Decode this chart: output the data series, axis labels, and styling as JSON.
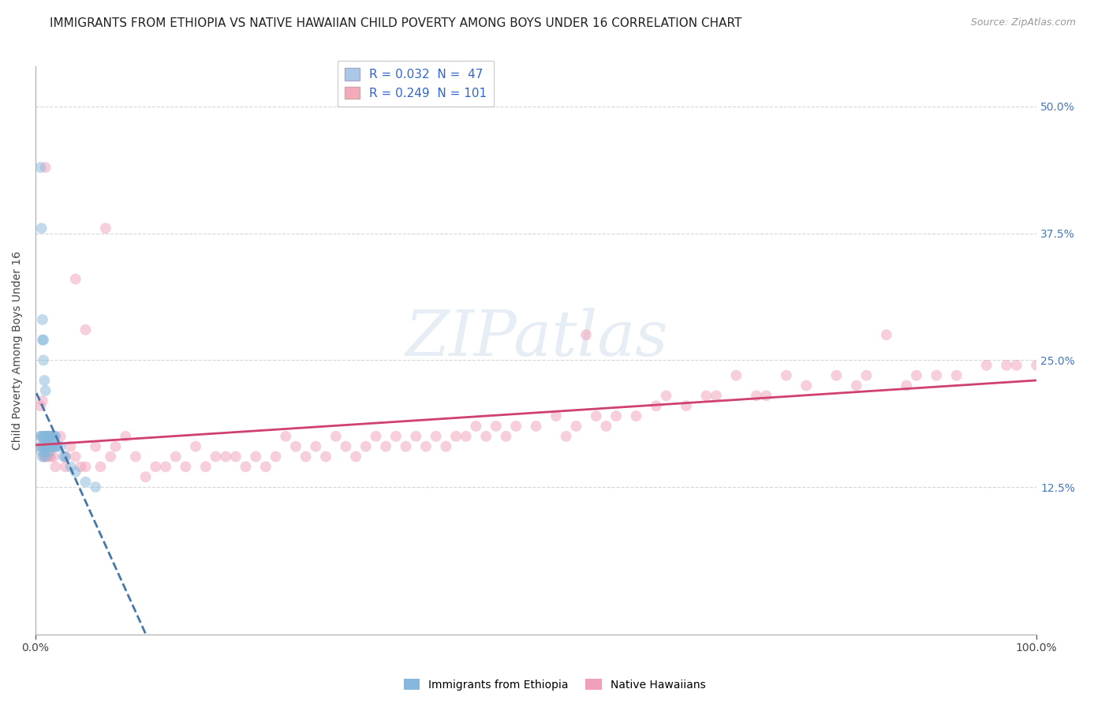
{
  "title": "IMMIGRANTS FROM ETHIOPIA VS NATIVE HAWAIIAN CHILD POVERTY AMONG BOYS UNDER 16 CORRELATION CHART",
  "source": "Source: ZipAtlas.com",
  "ylabel": "Child Poverty Among Boys Under 16",
  "xlim": [
    0.0,
    1.0
  ],
  "ylim": [
    -0.02,
    0.54
  ],
  "xtick_labels": [
    "0.0%",
    "100.0%"
  ],
  "xtick_positions": [
    0.0,
    1.0
  ],
  "ytick_labels": [
    "12.5%",
    "25.0%",
    "37.5%",
    "50.0%"
  ],
  "ytick_positions": [
    0.125,
    0.25,
    0.375,
    0.5
  ],
  "right_ytick_labels": [
    "12.5%",
    "25.0%",
    "37.5%",
    "50.0%"
  ],
  "legend_entry1": "R = 0.032  N =  47",
  "legend_entry2": "R = 0.249  N = 101",
  "legend_color1": "#aac8e8",
  "legend_color2": "#f4aabb",
  "series1_name": "Immigrants from Ethiopia",
  "series1_color": "#85b8dc",
  "series1_line_color": "#4477aa",
  "series1_line_style": "--",
  "series2_name": "Native Hawaiians",
  "series2_color": "#f0a0b8",
  "series2_line_color": "#d04070",
  "series2_line_style": "-",
  "watermark_text": "ZIPatlas",
  "background_color": "#ffffff",
  "grid_color": "#cccccc",
  "title_fontsize": 11,
  "label_fontsize": 10,
  "tick_fontsize": 10,
  "legend_fontsize": 11,
  "scatter_alpha": 0.5,
  "scatter_size": 100,
  "blue_x": [
    0.005,
    0.005,
    0.005,
    0.006,
    0.006,
    0.006,
    0.007,
    0.007,
    0.007,
    0.007,
    0.008,
    0.008,
    0.008,
    0.009,
    0.009,
    0.009,
    0.01,
    0.01,
    0.01,
    0.01,
    0.01,
    0.011,
    0.011,
    0.012,
    0.012,
    0.012,
    0.013,
    0.013,
    0.014,
    0.014,
    0.015,
    0.015,
    0.016,
    0.016,
    0.017,
    0.018,
    0.019,
    0.02,
    0.02,
    0.022,
    0.025,
    0.028,
    0.03,
    0.035,
    0.04,
    0.05,
    0.06
  ],
  "blue_y": [
    0.44,
    0.175,
    0.165,
    0.38,
    0.175,
    0.16,
    0.29,
    0.27,
    0.175,
    0.155,
    0.27,
    0.25,
    0.165,
    0.23,
    0.175,
    0.16,
    0.22,
    0.175,
    0.17,
    0.165,
    0.155,
    0.175,
    0.165,
    0.175,
    0.17,
    0.165,
    0.175,
    0.165,
    0.175,
    0.16,
    0.175,
    0.165,
    0.175,
    0.165,
    0.175,
    0.165,
    0.175,
    0.175,
    0.165,
    0.165,
    0.165,
    0.155,
    0.155,
    0.145,
    0.14,
    0.13,
    0.125
  ],
  "pink_x": [
    0.005,
    0.006,
    0.007,
    0.008,
    0.008,
    0.009,
    0.01,
    0.01,
    0.012,
    0.013,
    0.015,
    0.015,
    0.017,
    0.018,
    0.02,
    0.02,
    0.025,
    0.03,
    0.03,
    0.035,
    0.04,
    0.04,
    0.045,
    0.05,
    0.05,
    0.06,
    0.065,
    0.07,
    0.075,
    0.08,
    0.09,
    0.1,
    0.11,
    0.12,
    0.13,
    0.14,
    0.15,
    0.16,
    0.17,
    0.18,
    0.19,
    0.2,
    0.21,
    0.22,
    0.23,
    0.24,
    0.25,
    0.26,
    0.27,
    0.28,
    0.29,
    0.3,
    0.31,
    0.32,
    0.33,
    0.34,
    0.35,
    0.36,
    0.37,
    0.38,
    0.39,
    0.4,
    0.41,
    0.42,
    0.43,
    0.44,
    0.45,
    0.46,
    0.47,
    0.48,
    0.5,
    0.52,
    0.54,
    0.55,
    0.56,
    0.57,
    0.58,
    0.6,
    0.62,
    0.63,
    0.65,
    0.67,
    0.68,
    0.7,
    0.72,
    0.73,
    0.75,
    0.77,
    0.8,
    0.82,
    0.83,
    0.85,
    0.87,
    0.88,
    0.9,
    0.92,
    0.95,
    0.97,
    0.98,
    1.0,
    0.53
  ],
  "pink_y": [
    0.205,
    0.165,
    0.21,
    0.165,
    0.155,
    0.175,
    0.44,
    0.155,
    0.175,
    0.155,
    0.175,
    0.155,
    0.165,
    0.155,
    0.165,
    0.145,
    0.175,
    0.155,
    0.145,
    0.165,
    0.33,
    0.155,
    0.145,
    0.28,
    0.145,
    0.165,
    0.145,
    0.38,
    0.155,
    0.165,
    0.175,
    0.155,
    0.135,
    0.145,
    0.145,
    0.155,
    0.145,
    0.165,
    0.145,
    0.155,
    0.155,
    0.155,
    0.145,
    0.155,
    0.145,
    0.155,
    0.175,
    0.165,
    0.155,
    0.165,
    0.155,
    0.175,
    0.165,
    0.155,
    0.165,
    0.175,
    0.165,
    0.175,
    0.165,
    0.175,
    0.165,
    0.175,
    0.165,
    0.175,
    0.175,
    0.185,
    0.175,
    0.185,
    0.175,
    0.185,
    0.185,
    0.195,
    0.185,
    0.275,
    0.195,
    0.185,
    0.195,
    0.195,
    0.205,
    0.215,
    0.205,
    0.215,
    0.215,
    0.235,
    0.215,
    0.215,
    0.235,
    0.225,
    0.235,
    0.225,
    0.235,
    0.275,
    0.225,
    0.235,
    0.235,
    0.235,
    0.245,
    0.245,
    0.245,
    0.245,
    0.175
  ]
}
